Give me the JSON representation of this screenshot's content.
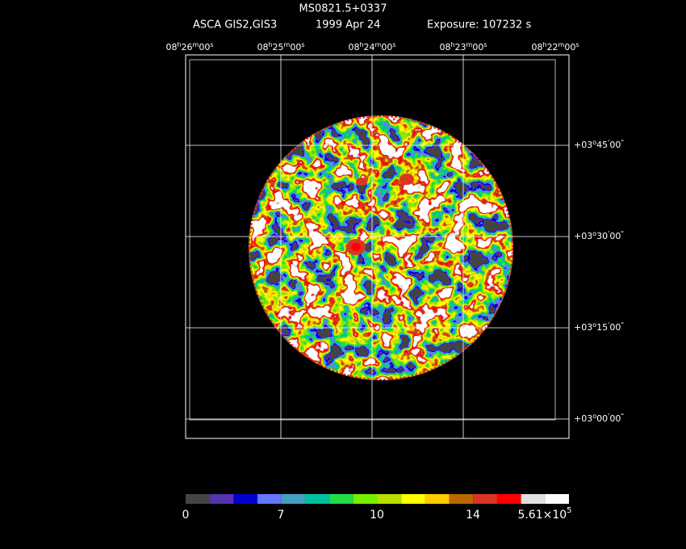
{
  "header": {
    "title": "MS0821.5+0337",
    "instrument": "ASCA GIS2,GIS3",
    "date": "1999 Apr 24",
    "exposure": "Exposure: 107232 s"
  },
  "ra_labels": [
    [
      "08",
      "h",
      "26",
      "m",
      "00",
      "s"
    ],
    [
      "08",
      "h",
      "25",
      "m",
      "00",
      "s"
    ],
    [
      "08",
      "h",
      "24",
      "m",
      "00",
      "s"
    ],
    [
      "08",
      "h",
      "23",
      "m",
      "00",
      "s"
    ],
    [
      "08",
      "h",
      "22",
      "m",
      "00",
      "s"
    ]
  ],
  "dec_labels": [
    [
      "+03",
      "o",
      "45",
      "'",
      "00",
      "\""
    ],
    [
      "+03",
      "o",
      "30",
      "'",
      "00",
      "\""
    ],
    [
      "+03",
      "o",
      "15",
      "'",
      "00",
      "\""
    ],
    [
      "+03",
      "o",
      "00",
      "'",
      "00",
      "\""
    ]
  ],
  "colorbar": {
    "colors": [
      "#444444",
      "#5533aa",
      "#0000cc",
      "#6677ff",
      "#44a0c0",
      "#00c0a0",
      "#22dd44",
      "#77ee00",
      "#bbdd00",
      "#ffff00",
      "#ffcc00",
      "#bb6600",
      "#dd3322",
      "#ff0000",
      "#e0e0e0",
      "#ffffff"
    ],
    "labels": [
      [
        "0"
      ],
      [
        "7"
      ],
      [
        "10"
      ],
      [
        "14"
      ],
      [
        "5.61×10",
        "5"
      ]
    ]
  }
}
